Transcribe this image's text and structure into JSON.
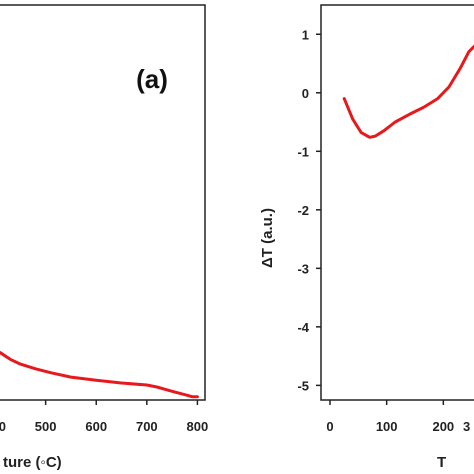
{
  "chart_data": [
    {
      "type": "line",
      "panel_label": "(a)",
      "xlabel": "ture (◦C)",
      "ylabel": "",
      "x_ticks": [
        "0",
        "500",
        "600",
        "700",
        "800"
      ],
      "xlim": [
        390,
        815
      ],
      "ylim": [
        0,
        1
      ],
      "line_color": "#e8191c",
      "series": [
        {
          "x": [
            390,
            400,
            415,
            430,
            450,
            480,
            510,
            550,
            600,
            650,
            700,
            720,
            750,
            780,
            790,
            800
          ],
          "y": [
            0.135,
            0.128,
            0.116,
            0.103,
            0.091,
            0.079,
            0.069,
            0.058,
            0.05,
            0.043,
            0.038,
            0.033,
            0.022,
            0.012,
            0.008,
            0.008
          ]
        }
      ]
    },
    {
      "type": "line",
      "xlabel": "T",
      "ylabel": "ΔT (a.u.)",
      "x_ticks": [
        "0",
        "100",
        "200",
        "3"
      ],
      "y_ticks": [
        "1",
        "0",
        "-1",
        "-2",
        "-3",
        "-4",
        "-5"
      ],
      "xlim": [
        0,
        300
      ],
      "ylim": [
        -5.25,
        1.5
      ],
      "line_color": "#e8191c",
      "series": [
        {
          "x": [
            25,
            40,
            55,
            70,
            80,
            95,
            115,
            140,
            165,
            190,
            210,
            230,
            245,
            255,
            265,
            275,
            285,
            290
          ],
          "y": [
            -0.1,
            -0.45,
            -0.68,
            -0.76,
            -0.74,
            -0.65,
            -0.5,
            -0.37,
            -0.25,
            -0.1,
            0.1,
            0.42,
            0.7,
            0.8,
            0.83,
            0.82,
            0.78,
            0.75
          ]
        }
      ]
    }
  ]
}
